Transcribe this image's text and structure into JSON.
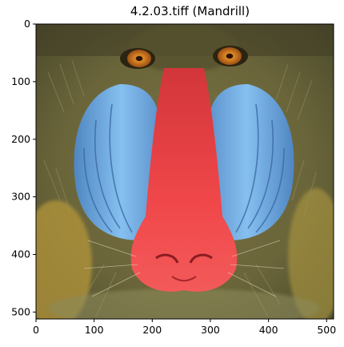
{
  "title": "4.2.03.tiff (Mandrill)",
  "image": {
    "kind": "photo",
    "subject": "mandrill face",
    "palette": {
      "fur": "#6f6a3c",
      "fur_dark": "#3f3d24",
      "fur_light": "#a59f6a",
      "cheek_blue": "#7ab4e6",
      "cheek_blue_dark": "#4b7fb8",
      "nose_red": "#f0474a",
      "nose_red_dark": "#c72f34",
      "eye_orange": "#d4761c",
      "beard_yellow": "#c9a53a"
    }
  },
  "chart_data": {
    "type": "heatmap",
    "title": "4.2.03.tiff (Mandrill)",
    "xlabel": "",
    "ylabel": "",
    "xlim": [
      0,
      512
    ],
    "ylim": [
      512,
      0
    ],
    "xticks": [
      0,
      100,
      200,
      300,
      400,
      500
    ],
    "yticks": [
      0,
      100,
      200,
      300,
      400,
      500
    ],
    "grid": false
  }
}
